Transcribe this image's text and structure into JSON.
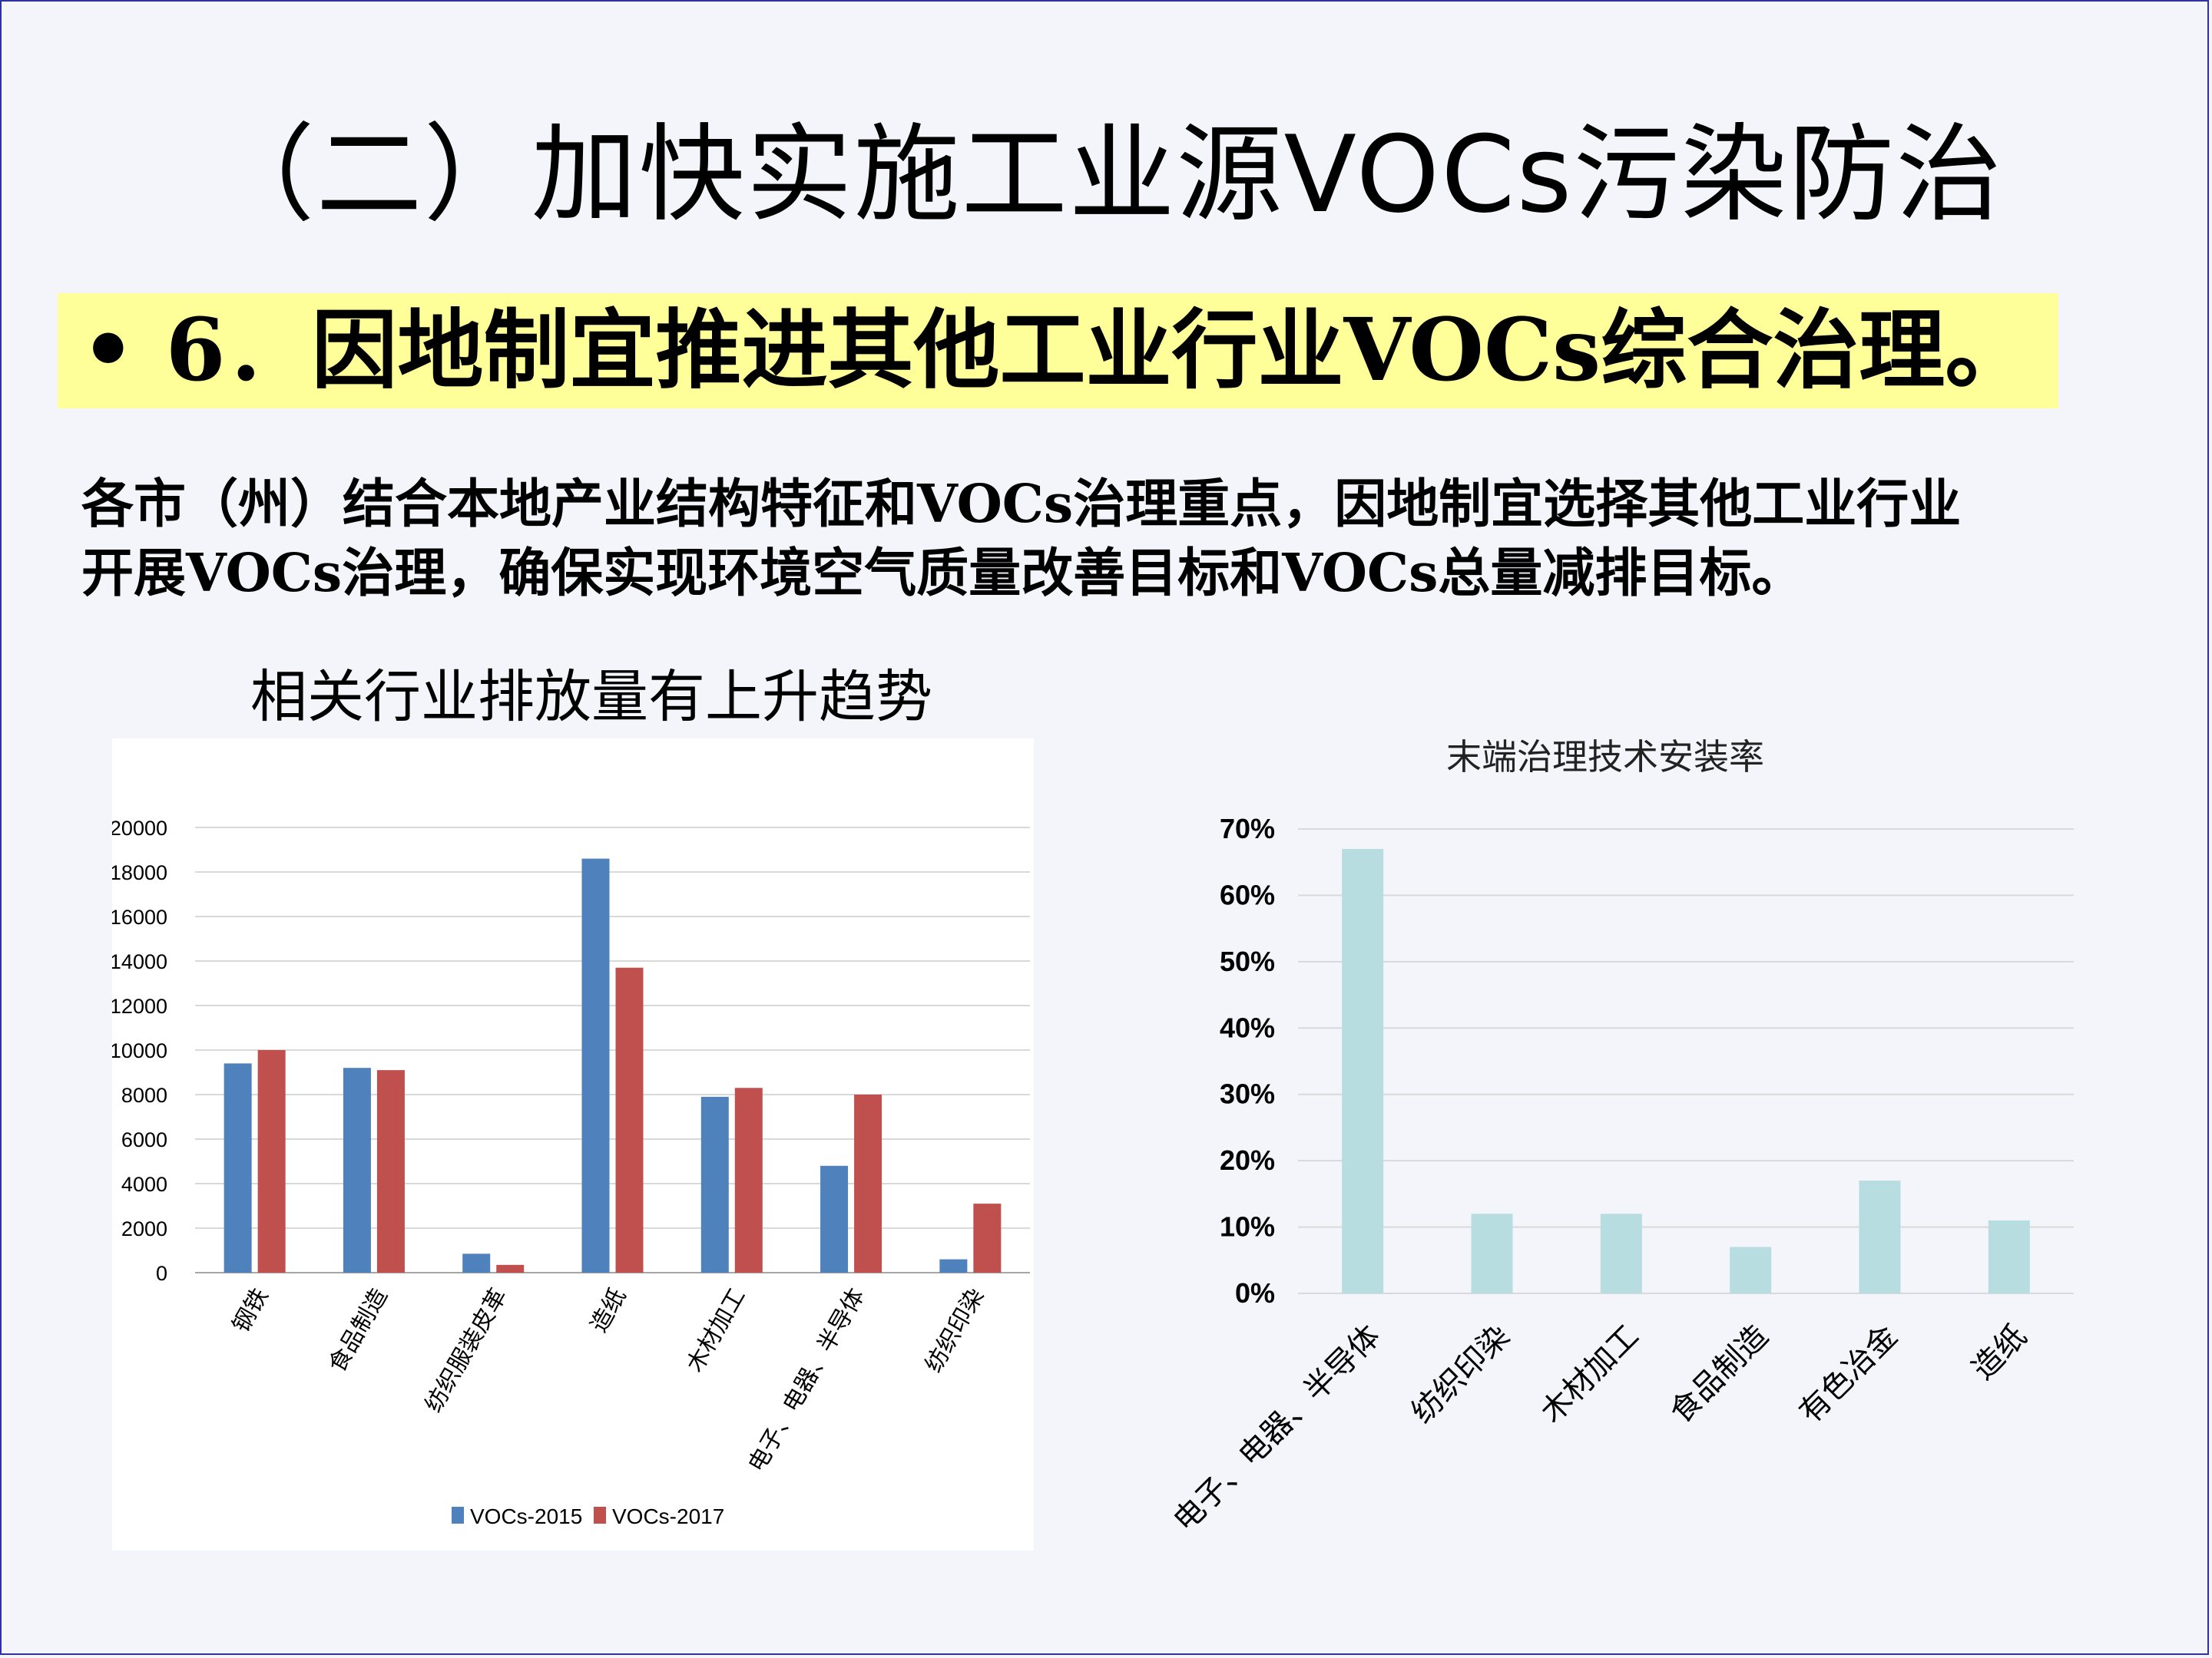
{
  "slide": {
    "title": "（二）加快实施工业源VOCs污染防治",
    "bullet": "• 6．因地制宜推进其他工业行业VOCs综合治理。",
    "paragraph_lines": [
      "各市（州）结合本地产业结构特征和VOCs治理重点，因地制宜选择其他工业行业",
      "开展VOCs治理，确保实现环境空气质量改善目标和VOCs总量减排目标。"
    ],
    "subheading": "相关行业排放量有上升趋势"
  },
  "chart_data": [
    {
      "type": "bar",
      "title": "",
      "categories": [
        "钢铁",
        "食品制造",
        "纺织服装皮革",
        "造纸",
        "木材加工",
        "电子、电器、半导体",
        "纺织印染"
      ],
      "series": [
        {
          "name": "VOCs-2015",
          "color": "#4f81bd",
          "values": [
            9400,
            9200,
            850,
            18600,
            7900,
            4800,
            600
          ]
        },
        {
          "name": "VOCs-2017",
          "color": "#c0504d",
          "values": [
            10000,
            9100,
            350,
            13700,
            8300,
            8000,
            3100
          ]
        }
      ],
      "yticks": [
        "0",
        "2000",
        "4000",
        "6000",
        "8000",
        "10000",
        "12000",
        "14000",
        "16000",
        "18000",
        "20000"
      ],
      "ylim": [
        0,
        20000
      ],
      "grid": true,
      "legend": "bottom"
    },
    {
      "type": "bar",
      "title": "末端治理技术安装率",
      "categories": [
        "电子、电器、半导体",
        "纺织印染",
        "木材加工",
        "食品制造",
        "有色冶金",
        "造纸"
      ],
      "series": [
        {
          "color": "#b7dde0",
          "values": [
            0.67,
            0.12,
            0.12,
            0.07,
            0.17,
            0.11
          ]
        }
      ],
      "yticks": [
        "0%",
        "10%",
        "20%",
        "30%",
        "40%",
        "50%",
        "60%",
        "70%"
      ],
      "ylim": [
        0,
        0.7
      ],
      "grid": true,
      "legend": "none"
    }
  ]
}
